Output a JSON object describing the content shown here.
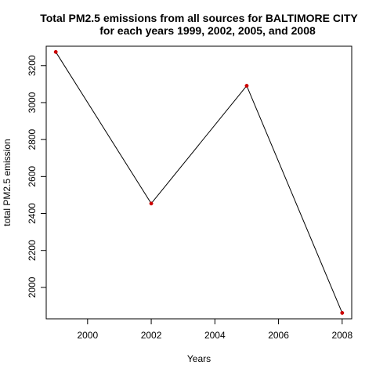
{
  "chart_data": {
    "type": "line",
    "title": "Total PM2.5 emissions from all sources for BALTIMORE CITY",
    "subtitle": "for each years 1999, 2002, 2005, and 2008",
    "xlabel": "Years",
    "ylabel": "total PM2.5 emission",
    "x": [
      1999,
      2002,
      2005,
      2008
    ],
    "series": [
      {
        "values": [
          3274,
          2454,
          3091,
          1862
        ],
        "line_color": "#000000",
        "point_color": "#cc0000"
      }
    ],
    "xlim": [
      1998.7,
      2008.3
    ],
    "ylim": [
      1830,
      3305
    ],
    "xticks": [
      2000,
      2002,
      2004,
      2006,
      2008
    ],
    "yticks": [
      2000,
      2200,
      2400,
      2600,
      2800,
      3000,
      3200
    ],
    "grid": false,
    "legend": "none"
  }
}
